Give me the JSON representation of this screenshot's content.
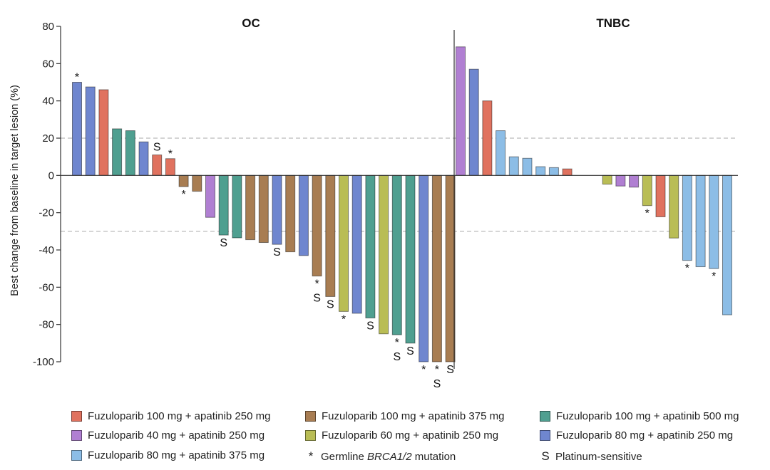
{
  "chart_data": {
    "type": "bar",
    "subtype": "waterfall",
    "ylabel": "Best change from baseline in target lesion (%)",
    "ylim": [
      -100,
      80
    ],
    "yticks": [
      80,
      60,
      40,
      20,
      0,
      -20,
      -40,
      -60,
      -80,
      -100
    ],
    "reference_lines": [
      20,
      -30
    ],
    "grid": false,
    "legend_placement": "bottom",
    "groups": {
      "F100A250": {
        "label": "Fuzuloparib 100 mg + apatinib 250 mg",
        "color": "#e0725f"
      },
      "F100A375": {
        "label": "Fuzuloparib 100 mg + apatinib 375 mg",
        "color": "#a87d52"
      },
      "F100A500": {
        "label": "Fuzuloparib 100 mg + apatinib 500 mg",
        "color": "#4f9f90"
      },
      "F40A250": {
        "label": "Fuzuloparib 40 mg + apatinib 250 mg",
        "color": "#b07fd2"
      },
      "F60A250": {
        "label": "Fuzuloparib 60 mg + apatinib 250 mg",
        "color": "#b9bd55"
      },
      "F80A250": {
        "label": "Fuzuloparib 80 mg + apatinib 250 mg",
        "color": "#6f86cf"
      },
      "F80A375": {
        "label": "Fuzuloparib 80 mg + apatinib 375 mg",
        "color": "#8cbde6"
      }
    },
    "legend_order": [
      "F100A250",
      "F100A375",
      "F100A500",
      "F40A250",
      "F60A250",
      "F80A250",
      "F80A375"
    ],
    "markers": {
      "germline": {
        "symbol": "*",
        "label_pre": "Germline ",
        "label_italic": "BRCA1/2",
        "label_post": " mutation"
      },
      "platinum": {
        "symbol": "S",
        "label": "Platinum-sensitive"
      }
    },
    "panels": [
      {
        "title": "OC",
        "bars": [
          {
            "value": 50,
            "group": "F80A250",
            "g": true,
            "s": false
          },
          {
            "value": 47.5,
            "group": "F80A250",
            "g": false,
            "s": false
          },
          {
            "value": 46,
            "group": "F100A250",
            "g": false,
            "s": false
          },
          {
            "value": 25,
            "group": "F100A500",
            "g": false,
            "s": false
          },
          {
            "value": 24,
            "group": "F100A500",
            "g": false,
            "s": false
          },
          {
            "value": 18,
            "group": "F80A250",
            "g": false,
            "s": false
          },
          {
            "value": 11,
            "group": "F100A250",
            "g": false,
            "s": true
          },
          {
            "value": 9,
            "group": "F100A250",
            "g": true,
            "s": false
          },
          {
            "value": -6,
            "group": "F100A375",
            "g": true,
            "s": false
          },
          {
            "value": -8.5,
            "group": "F100A375",
            "g": false,
            "s": false
          },
          {
            "value": -22.5,
            "group": "F40A250",
            "g": false,
            "s": false
          },
          {
            "value": -32,
            "group": "F100A500",
            "g": false,
            "s": true
          },
          {
            "value": -33.5,
            "group": "F100A500",
            "g": false,
            "s": false
          },
          {
            "value": -34.5,
            "group": "F100A375",
            "g": false,
            "s": false
          },
          {
            "value": -36,
            "group": "F100A375",
            "g": false,
            "s": false
          },
          {
            "value": -37,
            "group": "F80A250",
            "g": false,
            "s": true
          },
          {
            "value": -41,
            "group": "F100A375",
            "g": false,
            "s": false
          },
          {
            "value": -43,
            "group": "F80A250",
            "g": false,
            "s": false
          },
          {
            "value": -54,
            "group": "F100A375",
            "g": true,
            "s": true
          },
          {
            "value": -65,
            "group": "F100A375",
            "g": false,
            "s": true
          },
          {
            "value": -73,
            "group": "F60A250",
            "g": true,
            "s": false
          },
          {
            "value": -74,
            "group": "F80A250",
            "g": false,
            "s": false
          },
          {
            "value": -76.5,
            "group": "F100A500",
            "g": false,
            "s": true
          },
          {
            "value": -85,
            "group": "F60A250",
            "g": false,
            "s": false
          },
          {
            "value": -85.5,
            "group": "F100A500",
            "g": true,
            "s": true
          },
          {
            "value": -90,
            "group": "F100A500",
            "g": false,
            "s": true
          },
          {
            "value": -100,
            "group": "F80A250",
            "g": true,
            "s": false
          },
          {
            "value": -100,
            "group": "F100A375",
            "g": true,
            "s": true
          },
          {
            "value": -100,
            "group": "F100A375",
            "g": false,
            "s": true
          }
        ]
      },
      {
        "title": "TNBC",
        "bars": [
          {
            "value": 69,
            "group": "F40A250",
            "g": false,
            "s": false
          },
          {
            "value": 57,
            "group": "F80A250",
            "g": false,
            "s": false
          },
          {
            "value": 40,
            "group": "F100A250",
            "g": false,
            "s": false
          },
          {
            "value": 24,
            "group": "F80A375",
            "g": false,
            "s": false
          },
          {
            "value": 10,
            "group": "F80A375",
            "g": false,
            "s": false
          },
          {
            "value": 9.2,
            "group": "F80A375",
            "g": false,
            "s": false
          },
          {
            "value": 4.7,
            "group": "F80A375",
            "g": false,
            "s": false
          },
          {
            "value": 4.2,
            "group": "F80A375",
            "g": false,
            "s": false
          },
          {
            "value": 3.5,
            "group": "F100A250",
            "g": false,
            "s": false
          },
          {
            "value": 0,
            "group": null,
            "g": false,
            "s": false
          },
          {
            "value": 0,
            "group": null,
            "g": false,
            "s": false
          },
          {
            "value": -4.7,
            "group": "F60A250",
            "g": false,
            "s": false
          },
          {
            "value": -5.7,
            "group": "F40A250",
            "g": false,
            "s": false
          },
          {
            "value": -6.3,
            "group": "F40A250",
            "g": false,
            "s": false
          },
          {
            "value": -16.2,
            "group": "F60A250",
            "g": true,
            "s": false
          },
          {
            "value": -22.2,
            "group": "F100A250",
            "g": false,
            "s": false
          },
          {
            "value": -33.6,
            "group": "F60A250",
            "g": false,
            "s": false
          },
          {
            "value": -45.6,
            "group": "F80A375",
            "g": true,
            "s": false
          },
          {
            "value": -49,
            "group": "F80A375",
            "g": false,
            "s": false
          },
          {
            "value": -50,
            "group": "F80A375",
            "g": true,
            "s": false
          },
          {
            "value": -74.8,
            "group": "F80A375",
            "g": false,
            "s": false
          }
        ]
      }
    ]
  }
}
